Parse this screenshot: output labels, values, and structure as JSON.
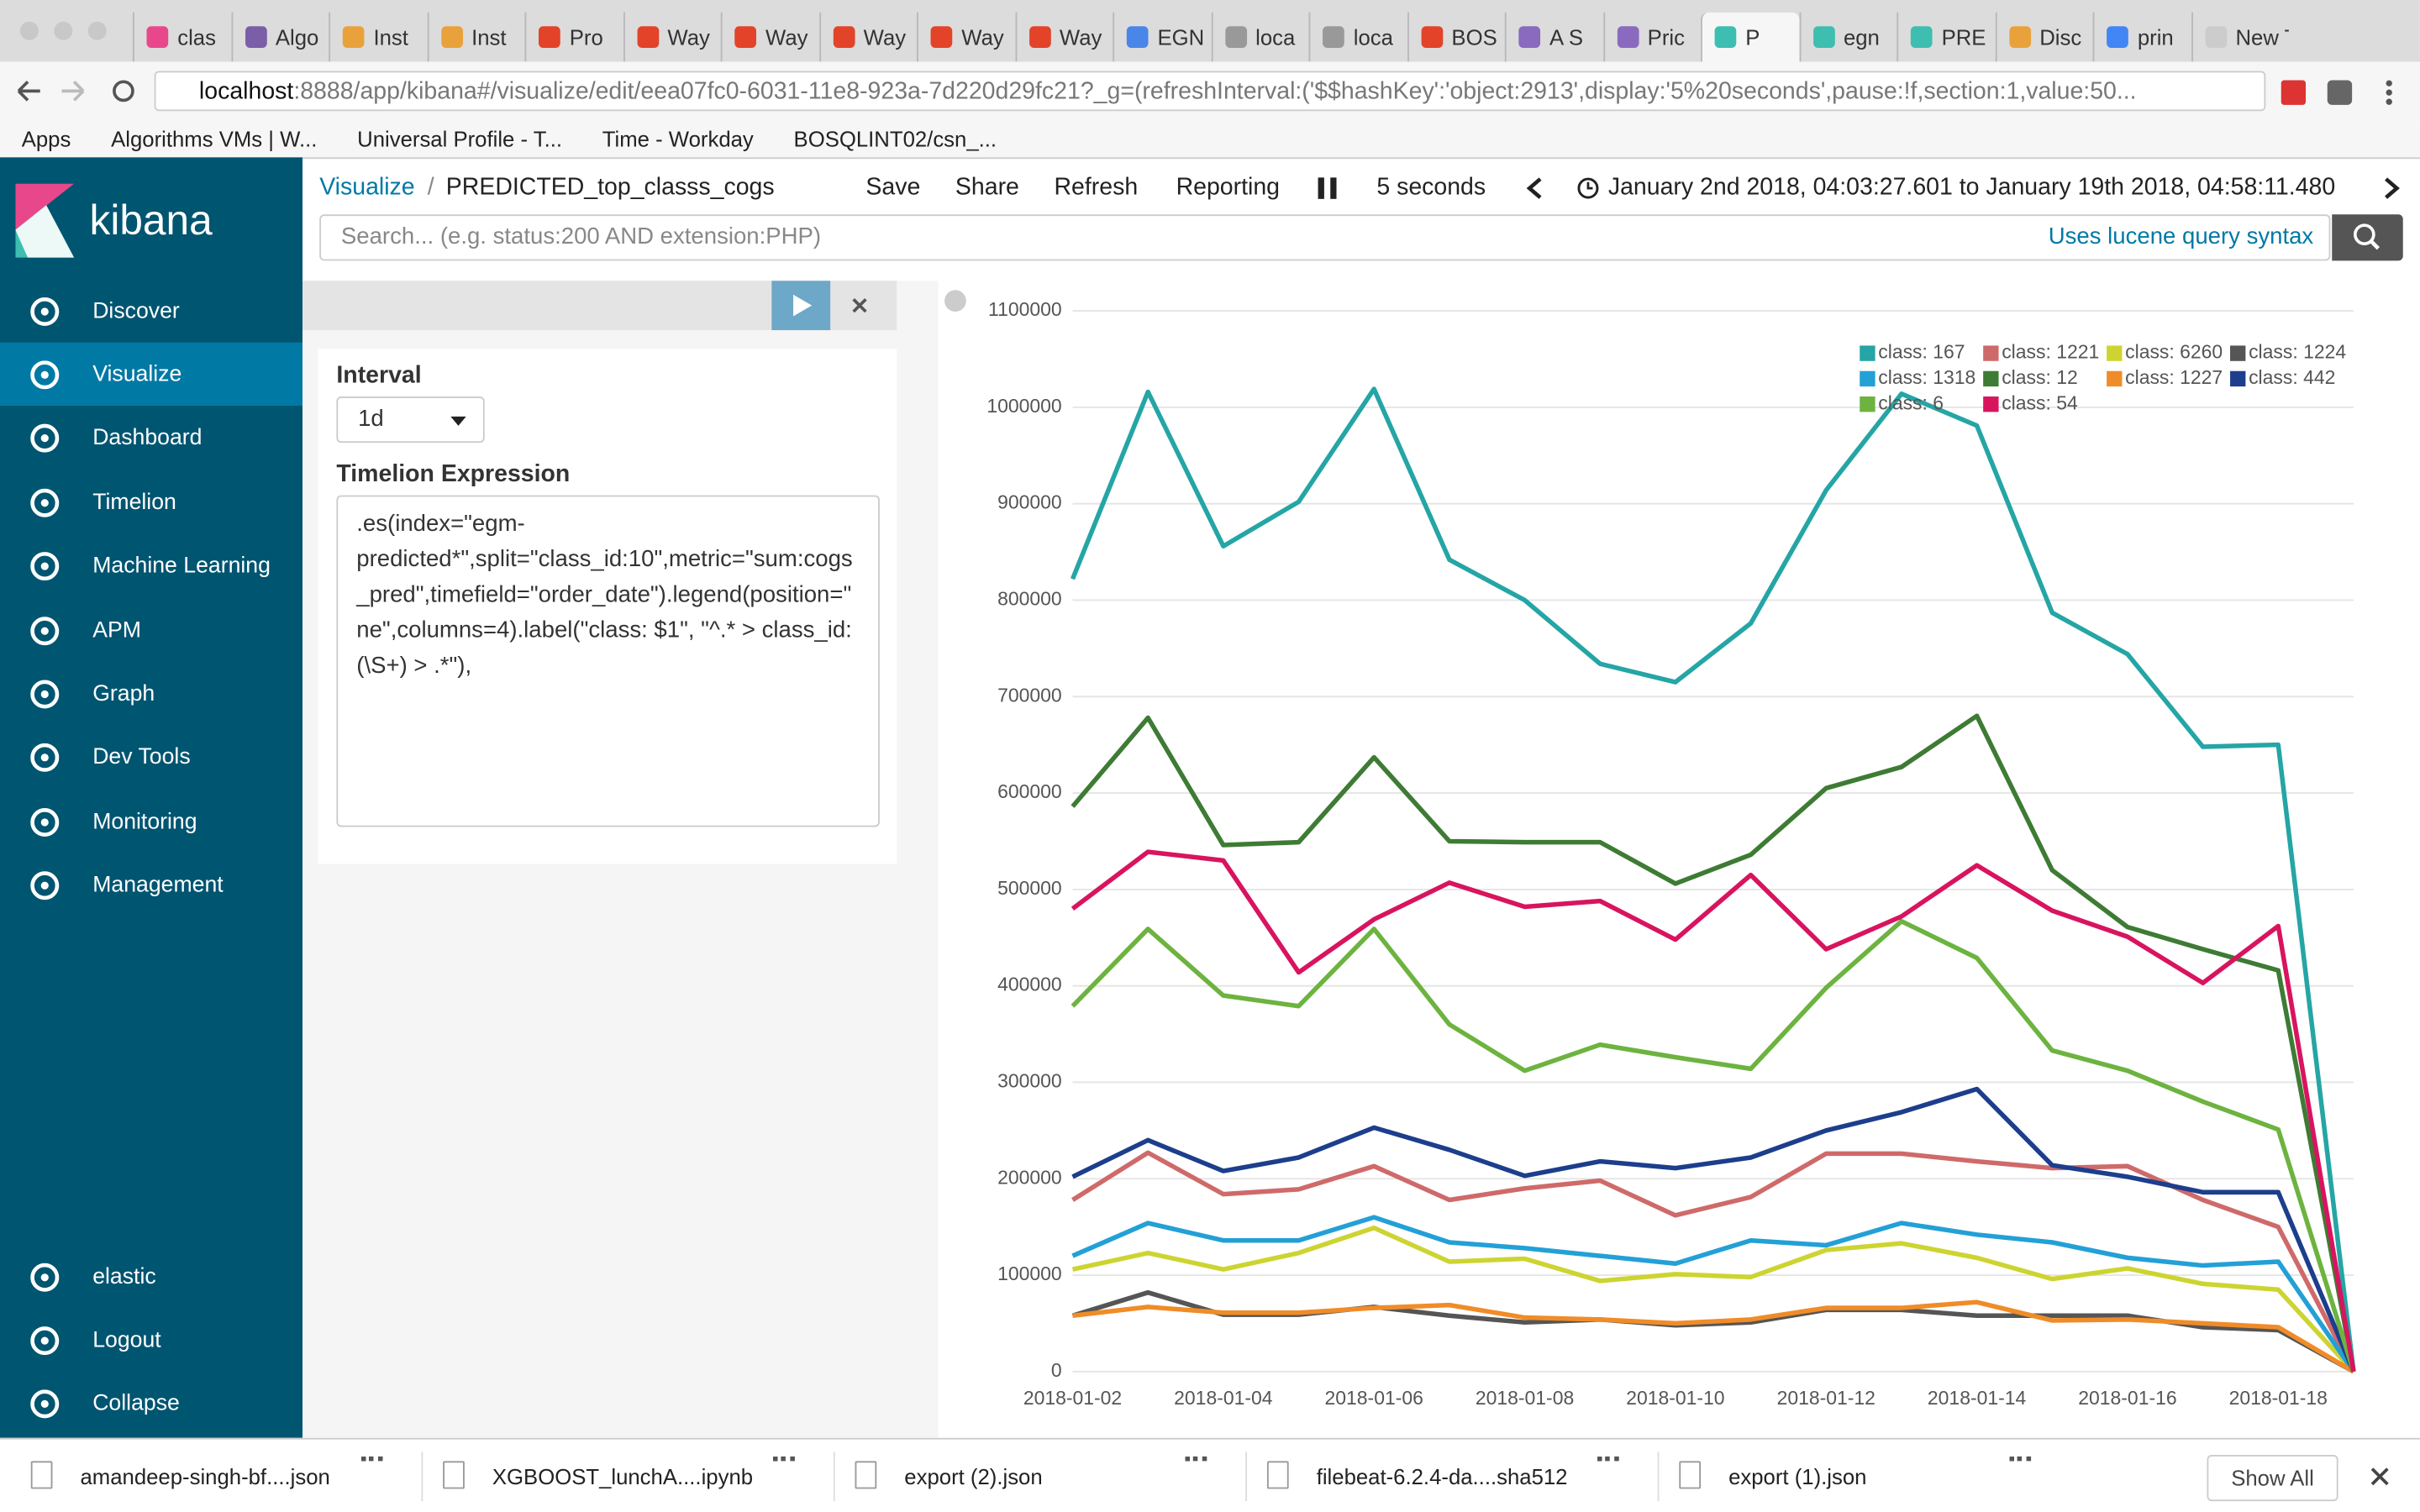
{
  "browser": {
    "tabs": [
      "clas",
      "Algo",
      "Inst",
      "Inst",
      "Pro",
      "Way",
      "Way",
      "Way",
      "Way",
      "Way",
      "EGN",
      "loca",
      "loca",
      "BOS",
      "A S",
      "Pric",
      "P",
      "egn",
      "PRE",
      "Disc",
      "prin",
      "New Ta"
    ],
    "url_host": "localhost",
    "url_rest": ":8888/app/kibana#/visualize/edit/eea07fc0-6031-11e8-923a-7d220d29fc21?_g=(refreshInterval:('$$hashKey':'object:2913',display:'5%20seconds',pause:!f,section:1,value:50...",
    "bookmarks": [
      "Apps",
      "Algorithms VMs | W...",
      "Universal Profile - T...",
      "Time - Workday",
      "BOSQLINT02/csn_..."
    ]
  },
  "sidebar": {
    "brand": "kibana",
    "nav": [
      "Discover",
      "Visualize",
      "Dashboard",
      "Timelion",
      "Machine Learning",
      "APM",
      "Graph",
      "Dev Tools",
      "Monitoring",
      "Management"
    ],
    "bottom": [
      "elastic",
      "Logout",
      "Collapse"
    ]
  },
  "header": {
    "breadcrumb_root": "Visualize",
    "separator": "/",
    "breadcrumb_page": "PREDICTED_top_classs_cogs",
    "actions": [
      "Save",
      "Share",
      "Refresh",
      "Reporting"
    ],
    "refresh_interval": "5 seconds",
    "time_range": "January 2nd 2018, 04:03:27.601 to January 19th 2018, 04:58:11.480"
  },
  "query": {
    "placeholder": "Search... (e.g. status:200 AND extension:PHP)",
    "syntax_link": "Uses lucene query syntax"
  },
  "editor": {
    "interval_label": "Interval",
    "interval_value": "1d",
    "expression_label": "Timelion Expression",
    "expression": ".es(index=\"egm-predicted*\",split=\"class_id:10\",metric=\"sum:cogs_pred\",timefield=\"order_date\").legend(position=\"ne\",columns=4).label(\"class: $1\", \"^.* > class_id:(\\S+) > .*\"),"
  },
  "chart_data": {
    "type": "line",
    "legend": "ne",
    "legend_columns": 4,
    "grid": true,
    "x": [
      "2018-01-02",
      "2018-01-03",
      "2018-01-04",
      "2018-01-05",
      "2018-01-06",
      "2018-01-07",
      "2018-01-08",
      "2018-01-09",
      "2018-01-10",
      "2018-01-11",
      "2018-01-12",
      "2018-01-13",
      "2018-01-14",
      "2018-01-15",
      "2018-01-16",
      "2018-01-17",
      "2018-01-18",
      "2018-01-19"
    ],
    "ylim": [
      0,
      1100000
    ],
    "yticks": [
      0,
      100000,
      200000,
      300000,
      400000,
      500000,
      600000,
      700000,
      800000,
      900000,
      1000000,
      1100000
    ],
    "series": [
      {
        "name": "class: 167",
        "color": "#25a5a5",
        "values": [
          822000,
          1016000,
          856000,
          902000,
          1019000,
          842000,
          800000,
          734000,
          715000,
          776000,
          914000,
          1014000,
          981000,
          787000,
          744000,
          648000,
          650000,
          0
        ]
      },
      {
        "name": "class: 1221",
        "color": "#cf6a6a",
        "values": [
          178000,
          227000,
          184000,
          189000,
          213000,
          178000,
          190000,
          198000,
          162000,
          181000,
          226000,
          226000,
          218000,
          211000,
          213000,
          178000,
          150000,
          0
        ]
      },
      {
        "name": "class: 6260",
        "color": "#cdd431",
        "values": [
          106000,
          123000,
          106000,
          123000,
          149000,
          114000,
          117000,
          94000,
          101000,
          98000,
          126000,
          133000,
          118000,
          96000,
          107000,
          91000,
          85000,
          0
        ]
      },
      {
        "name": "class: 1224",
        "color": "#555555",
        "values": [
          58000,
          82000,
          59000,
          59000,
          67000,
          58000,
          51000,
          54000,
          48000,
          51000,
          64000,
          64000,
          58000,
          58000,
          58000,
          46000,
          43000,
          0
        ]
      },
      {
        "name": "class: 1318",
        "color": "#23a0d6",
        "values": [
          120000,
          154000,
          136000,
          136000,
          160000,
          134000,
          128000,
          120000,
          112000,
          136000,
          131000,
          154000,
          142000,
          134000,
          118000,
          110000,
          114000,
          0
        ]
      },
      {
        "name": "class: 12",
        "color": "#3e7b34",
        "values": [
          586000,
          678000,
          546000,
          549000,
          637000,
          550000,
          549000,
          549000,
          506000,
          536000,
          605000,
          627000,
          680000,
          520000,
          461000,
          438000,
          416000,
          0
        ]
      },
      {
        "name": "class: 1227",
        "color": "#f08c28",
        "values": [
          58000,
          67000,
          61000,
          61000,
          66000,
          69000,
          56000,
          54000,
          50000,
          54000,
          66000,
          66000,
          72000,
          53000,
          54000,
          50000,
          46000,
          0
        ]
      },
      {
        "name": "class: 442",
        "color": "#1c3e8c",
        "values": [
          202000,
          240000,
          208000,
          222000,
          253000,
          230000,
          203000,
          218000,
          211000,
          222000,
          250000,
          269000,
          293000,
          214000,
          202000,
          186000,
          186000,
          0
        ]
      },
      {
        "name": "class: 6",
        "color": "#6db33f",
        "values": [
          379000,
          459000,
          390000,
          379000,
          459000,
          360000,
          312000,
          339000,
          326000,
          314000,
          398000,
          467000,
          429000,
          333000,
          312000,
          280000,
          251000,
          0
        ]
      },
      {
        "name": "class: 54",
        "color": "#d8145f",
        "values": [
          480000,
          539000,
          530000,
          414000,
          469000,
          507000,
          482000,
          488000,
          448000,
          515000,
          438000,
          472000,
          525000,
          478000,
          451000,
          403000,
          462000,
          0
        ]
      }
    ]
  },
  "downloads": {
    "files": [
      "amandeep-singh-bf....json",
      "XGBOOST_lunchA....ipynb",
      "export (2).json",
      "filebeat-6.2.4-da....sha512",
      "export (1).json"
    ],
    "show_all": "Show All"
  }
}
